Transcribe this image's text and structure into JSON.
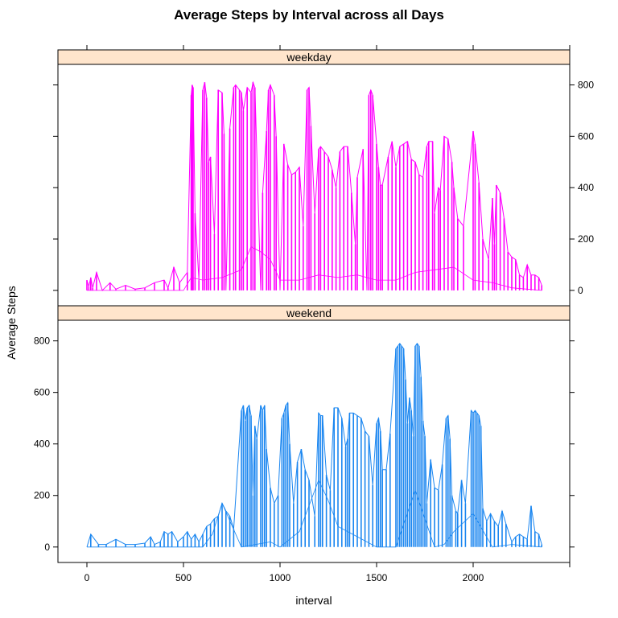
{
  "chart_data": {
    "type": "line",
    "title": "Average Steps by Interval across all Days",
    "xlabel": "interval",
    "ylabel": "Average Steps",
    "xlim": [
      -150,
      2500
    ],
    "ylim": [
      -60,
      880
    ],
    "x_ticks": [
      "0",
      "500",
      "1000",
      "1500",
      "2000"
    ],
    "y_ticks": [
      "0",
      "200",
      "400",
      "600",
      "800"
    ],
    "panels": [
      {
        "name": "weekday",
        "color": "#ff00ff",
        "values": [
          [
            0,
            40
          ],
          [
            10,
            15
          ],
          [
            20,
            50
          ],
          [
            30,
            10
          ],
          [
            50,
            70
          ],
          [
            80,
            0
          ],
          [
            120,
            30
          ],
          [
            150,
            5
          ],
          [
            200,
            20
          ],
          [
            250,
            5
          ],
          [
            300,
            10
          ],
          [
            350,
            30
          ],
          [
            400,
            40
          ],
          [
            420,
            10
          ],
          [
            450,
            90
          ],
          [
            480,
            30
          ],
          [
            520,
            70
          ],
          [
            540,
            760
          ],
          [
            545,
            800
          ],
          [
            550,
            790
          ],
          [
            560,
            300
          ],
          [
            580,
            40
          ],
          [
            600,
            780
          ],
          [
            610,
            810
          ],
          [
            620,
            750
          ],
          [
            630,
            500
          ],
          [
            640,
            520
          ],
          [
            660,
            220
          ],
          [
            680,
            780
          ],
          [
            700,
            770
          ],
          [
            710,
            610
          ],
          [
            720,
            0
          ],
          [
            740,
            630
          ],
          [
            760,
            790
          ],
          [
            770,
            800
          ],
          [
            790,
            780
          ],
          [
            800,
            770
          ],
          [
            810,
            700
          ],
          [
            830,
            790
          ],
          [
            850,
            770
          ],
          [
            860,
            810
          ],
          [
            870,
            790
          ],
          [
            900,
            0
          ],
          [
            910,
            380
          ],
          [
            930,
            620
          ],
          [
            940,
            780
          ],
          [
            950,
            800
          ],
          [
            970,
            760
          ],
          [
            980,
            600
          ],
          [
            1000,
            0
          ],
          [
            1020,
            570
          ],
          [
            1040,
            490
          ],
          [
            1060,
            450
          ],
          [
            1080,
            460
          ],
          [
            1100,
            480
          ],
          [
            1120,
            250
          ],
          [
            1140,
            780
          ],
          [
            1150,
            790
          ],
          [
            1160,
            640
          ],
          [
            1180,
            300
          ],
          [
            1200,
            550
          ],
          [
            1210,
            560
          ],
          [
            1230,
            540
          ],
          [
            1250,
            520
          ],
          [
            1270,
            470
          ],
          [
            1290,
            400
          ],
          [
            1310,
            540
          ],
          [
            1330,
            560
          ],
          [
            1350,
            560
          ],
          [
            1370,
            380
          ],
          [
            1390,
            180
          ],
          [
            1400,
            440
          ],
          [
            1430,
            550
          ],
          [
            1450,
            0
          ],
          [
            1460,
            760
          ],
          [
            1470,
            780
          ],
          [
            1480,
            760
          ],
          [
            1500,
            570
          ],
          [
            1510,
            480
          ],
          [
            1520,
            410
          ],
          [
            1530,
            410
          ],
          [
            1560,
            520
          ],
          [
            1580,
            580
          ],
          [
            1600,
            480
          ],
          [
            1620,
            560
          ],
          [
            1640,
            570
          ],
          [
            1660,
            580
          ],
          [
            1680,
            510
          ],
          [
            1700,
            500
          ],
          [
            1720,
            450
          ],
          [
            1740,
            440
          ],
          [
            1760,
            560
          ],
          [
            1770,
            580
          ],
          [
            1790,
            580
          ],
          [
            1800,
            300
          ],
          [
            1820,
            400
          ],
          [
            1830,
            390
          ],
          [
            1850,
            600
          ],
          [
            1870,
            590
          ],
          [
            1890,
            500
          ],
          [
            1900,
            400
          ],
          [
            1920,
            280
          ],
          [
            1950,
            250
          ],
          [
            2000,
            620
          ],
          [
            2010,
            570
          ],
          [
            2030,
            420
          ],
          [
            2050,
            200
          ],
          [
            2080,
            120
          ],
          [
            2100,
            360
          ],
          [
            2110,
            180
          ],
          [
            2120,
            410
          ],
          [
            2140,
            380
          ],
          [
            2160,
            280
          ],
          [
            2180,
            150
          ],
          [
            2200,
            130
          ],
          [
            2220,
            120
          ],
          [
            2240,
            60
          ],
          [
            2260,
            50
          ],
          [
            2280,
            100
          ],
          [
            2300,
            60
          ],
          [
            2320,
            60
          ],
          [
            2340,
            50
          ],
          [
            2355,
            20
          ]
        ],
        "mean_line": [
          [
            0,
            0
          ],
          [
            500,
            0
          ],
          [
            540,
            50
          ],
          [
            600,
            40
          ],
          [
            700,
            50
          ],
          [
            800,
            80
          ],
          [
            850,
            170
          ],
          [
            900,
            150
          ],
          [
            950,
            120
          ],
          [
            1000,
            40
          ],
          [
            1100,
            40
          ],
          [
            1200,
            60
          ],
          [
            1300,
            50
          ],
          [
            1400,
            60
          ],
          [
            1500,
            40
          ],
          [
            1600,
            40
          ],
          [
            1700,
            70
          ],
          [
            1800,
            80
          ],
          [
            1900,
            90
          ],
          [
            2000,
            40
          ],
          [
            2100,
            30
          ],
          [
            2200,
            10
          ],
          [
            2355,
            0
          ]
        ]
      },
      {
        "name": "weekend",
        "color": "#1a86f0",
        "values": [
          [
            0,
            0
          ],
          [
            20,
            50
          ],
          [
            60,
            10
          ],
          [
            100,
            10
          ],
          [
            150,
            30
          ],
          [
            200,
            10
          ],
          [
            250,
            10
          ],
          [
            300,
            15
          ],
          [
            330,
            40
          ],
          [
            350,
            10
          ],
          [
            380,
            20
          ],
          [
            400,
            60
          ],
          [
            420,
            50
          ],
          [
            440,
            60
          ],
          [
            470,
            20
          ],
          [
            500,
            40
          ],
          [
            520,
            60
          ],
          [
            540,
            30
          ],
          [
            560,
            50
          ],
          [
            580,
            20
          ],
          [
            600,
            50
          ],
          [
            620,
            80
          ],
          [
            640,
            90
          ],
          [
            660,
            110
          ],
          [
            680,
            120
          ],
          [
            700,
            170
          ],
          [
            720,
            140
          ],
          [
            740,
            120
          ],
          [
            760,
            70
          ],
          [
            800,
            530
          ],
          [
            810,
            550
          ],
          [
            820,
            490
          ],
          [
            830,
            540
          ],
          [
            840,
            550
          ],
          [
            850,
            510
          ],
          [
            860,
            200
          ],
          [
            870,
            470
          ],
          [
            880,
            420
          ],
          [
            900,
            550
          ],
          [
            910,
            530
          ],
          [
            920,
            550
          ],
          [
            930,
            380
          ],
          [
            950,
            230
          ],
          [
            970,
            170
          ],
          [
            990,
            200
          ],
          [
            1010,
            500
          ],
          [
            1020,
            520
          ],
          [
            1030,
            550
          ],
          [
            1040,
            560
          ],
          [
            1050,
            400
          ],
          [
            1070,
            170
          ],
          [
            1090,
            330
          ],
          [
            1110,
            380
          ],
          [
            1130,
            300
          ],
          [
            1150,
            260
          ],
          [
            1180,
            120
          ],
          [
            1200,
            520
          ],
          [
            1210,
            510
          ],
          [
            1220,
            510
          ],
          [
            1240,
            280
          ],
          [
            1260,
            220
          ],
          [
            1280,
            540
          ],
          [
            1300,
            540
          ],
          [
            1320,
            500
          ],
          [
            1340,
            390
          ],
          [
            1350,
            420
          ],
          [
            1360,
            520
          ],
          [
            1380,
            520
          ],
          [
            1400,
            510
          ],
          [
            1420,
            500
          ],
          [
            1440,
            450
          ],
          [
            1460,
            430
          ],
          [
            1480,
            240
          ],
          [
            1500,
            480
          ],
          [
            1510,
            500
          ],
          [
            1520,
            450
          ],
          [
            1530,
            300
          ],
          [
            1550,
            300
          ],
          [
            1570,
            440
          ],
          [
            1600,
            770
          ],
          [
            1610,
            780
          ],
          [
            1620,
            790
          ],
          [
            1630,
            780
          ],
          [
            1640,
            770
          ],
          [
            1650,
            650
          ],
          [
            1660,
            480
          ],
          [
            1670,
            580
          ],
          [
            1680,
            530
          ],
          [
            1690,
            430
          ],
          [
            1700,
            780
          ],
          [
            1710,
            790
          ],
          [
            1720,
            780
          ],
          [
            1730,
            660
          ],
          [
            1740,
            490
          ],
          [
            1750,
            430
          ],
          [
            1760,
            170
          ],
          [
            1780,
            340
          ],
          [
            1800,
            230
          ],
          [
            1820,
            220
          ],
          [
            1840,
            320
          ],
          [
            1860,
            500
          ],
          [
            1870,
            510
          ],
          [
            1880,
            420
          ],
          [
            1890,
            200
          ],
          [
            1910,
            140
          ],
          [
            1920,
            130
          ],
          [
            1940,
            260
          ],
          [
            1960,
            170
          ],
          [
            1990,
            530
          ],
          [
            2000,
            520
          ],
          [
            2010,
            530
          ],
          [
            2020,
            520
          ],
          [
            2030,
            510
          ],
          [
            2040,
            470
          ],
          [
            2050,
            150
          ],
          [
            2070,
            100
          ],
          [
            2090,
            130
          ],
          [
            2110,
            100
          ],
          [
            2130,
            80
          ],
          [
            2150,
            140
          ],
          [
            2170,
            90
          ],
          [
            2200,
            20
          ],
          [
            2220,
            40
          ],
          [
            2240,
            50
          ],
          [
            2260,
            40
          ],
          [
            2280,
            30
          ],
          [
            2300,
            160
          ],
          [
            2320,
            60
          ],
          [
            2340,
            50
          ],
          [
            2355,
            10
          ]
        ],
        "mean_line": [
          [
            0,
            0
          ],
          [
            600,
            0
          ],
          [
            650,
            50
          ],
          [
            700,
            170
          ],
          [
            800,
            0
          ],
          [
            950,
            20
          ],
          [
            1000,
            0
          ],
          [
            1100,
            60
          ],
          [
            1200,
            260
          ],
          [
            1250,
            180
          ],
          [
            1300,
            80
          ],
          [
            1400,
            40
          ],
          [
            1500,
            0
          ],
          [
            1600,
            0
          ],
          [
            1700,
            220
          ],
          [
            1800,
            0
          ],
          [
            1850,
            10
          ],
          [
            1900,
            60
          ],
          [
            2000,
            130
          ],
          [
            2100,
            0
          ],
          [
            2200,
            10
          ],
          [
            2355,
            0
          ]
        ]
      }
    ]
  }
}
